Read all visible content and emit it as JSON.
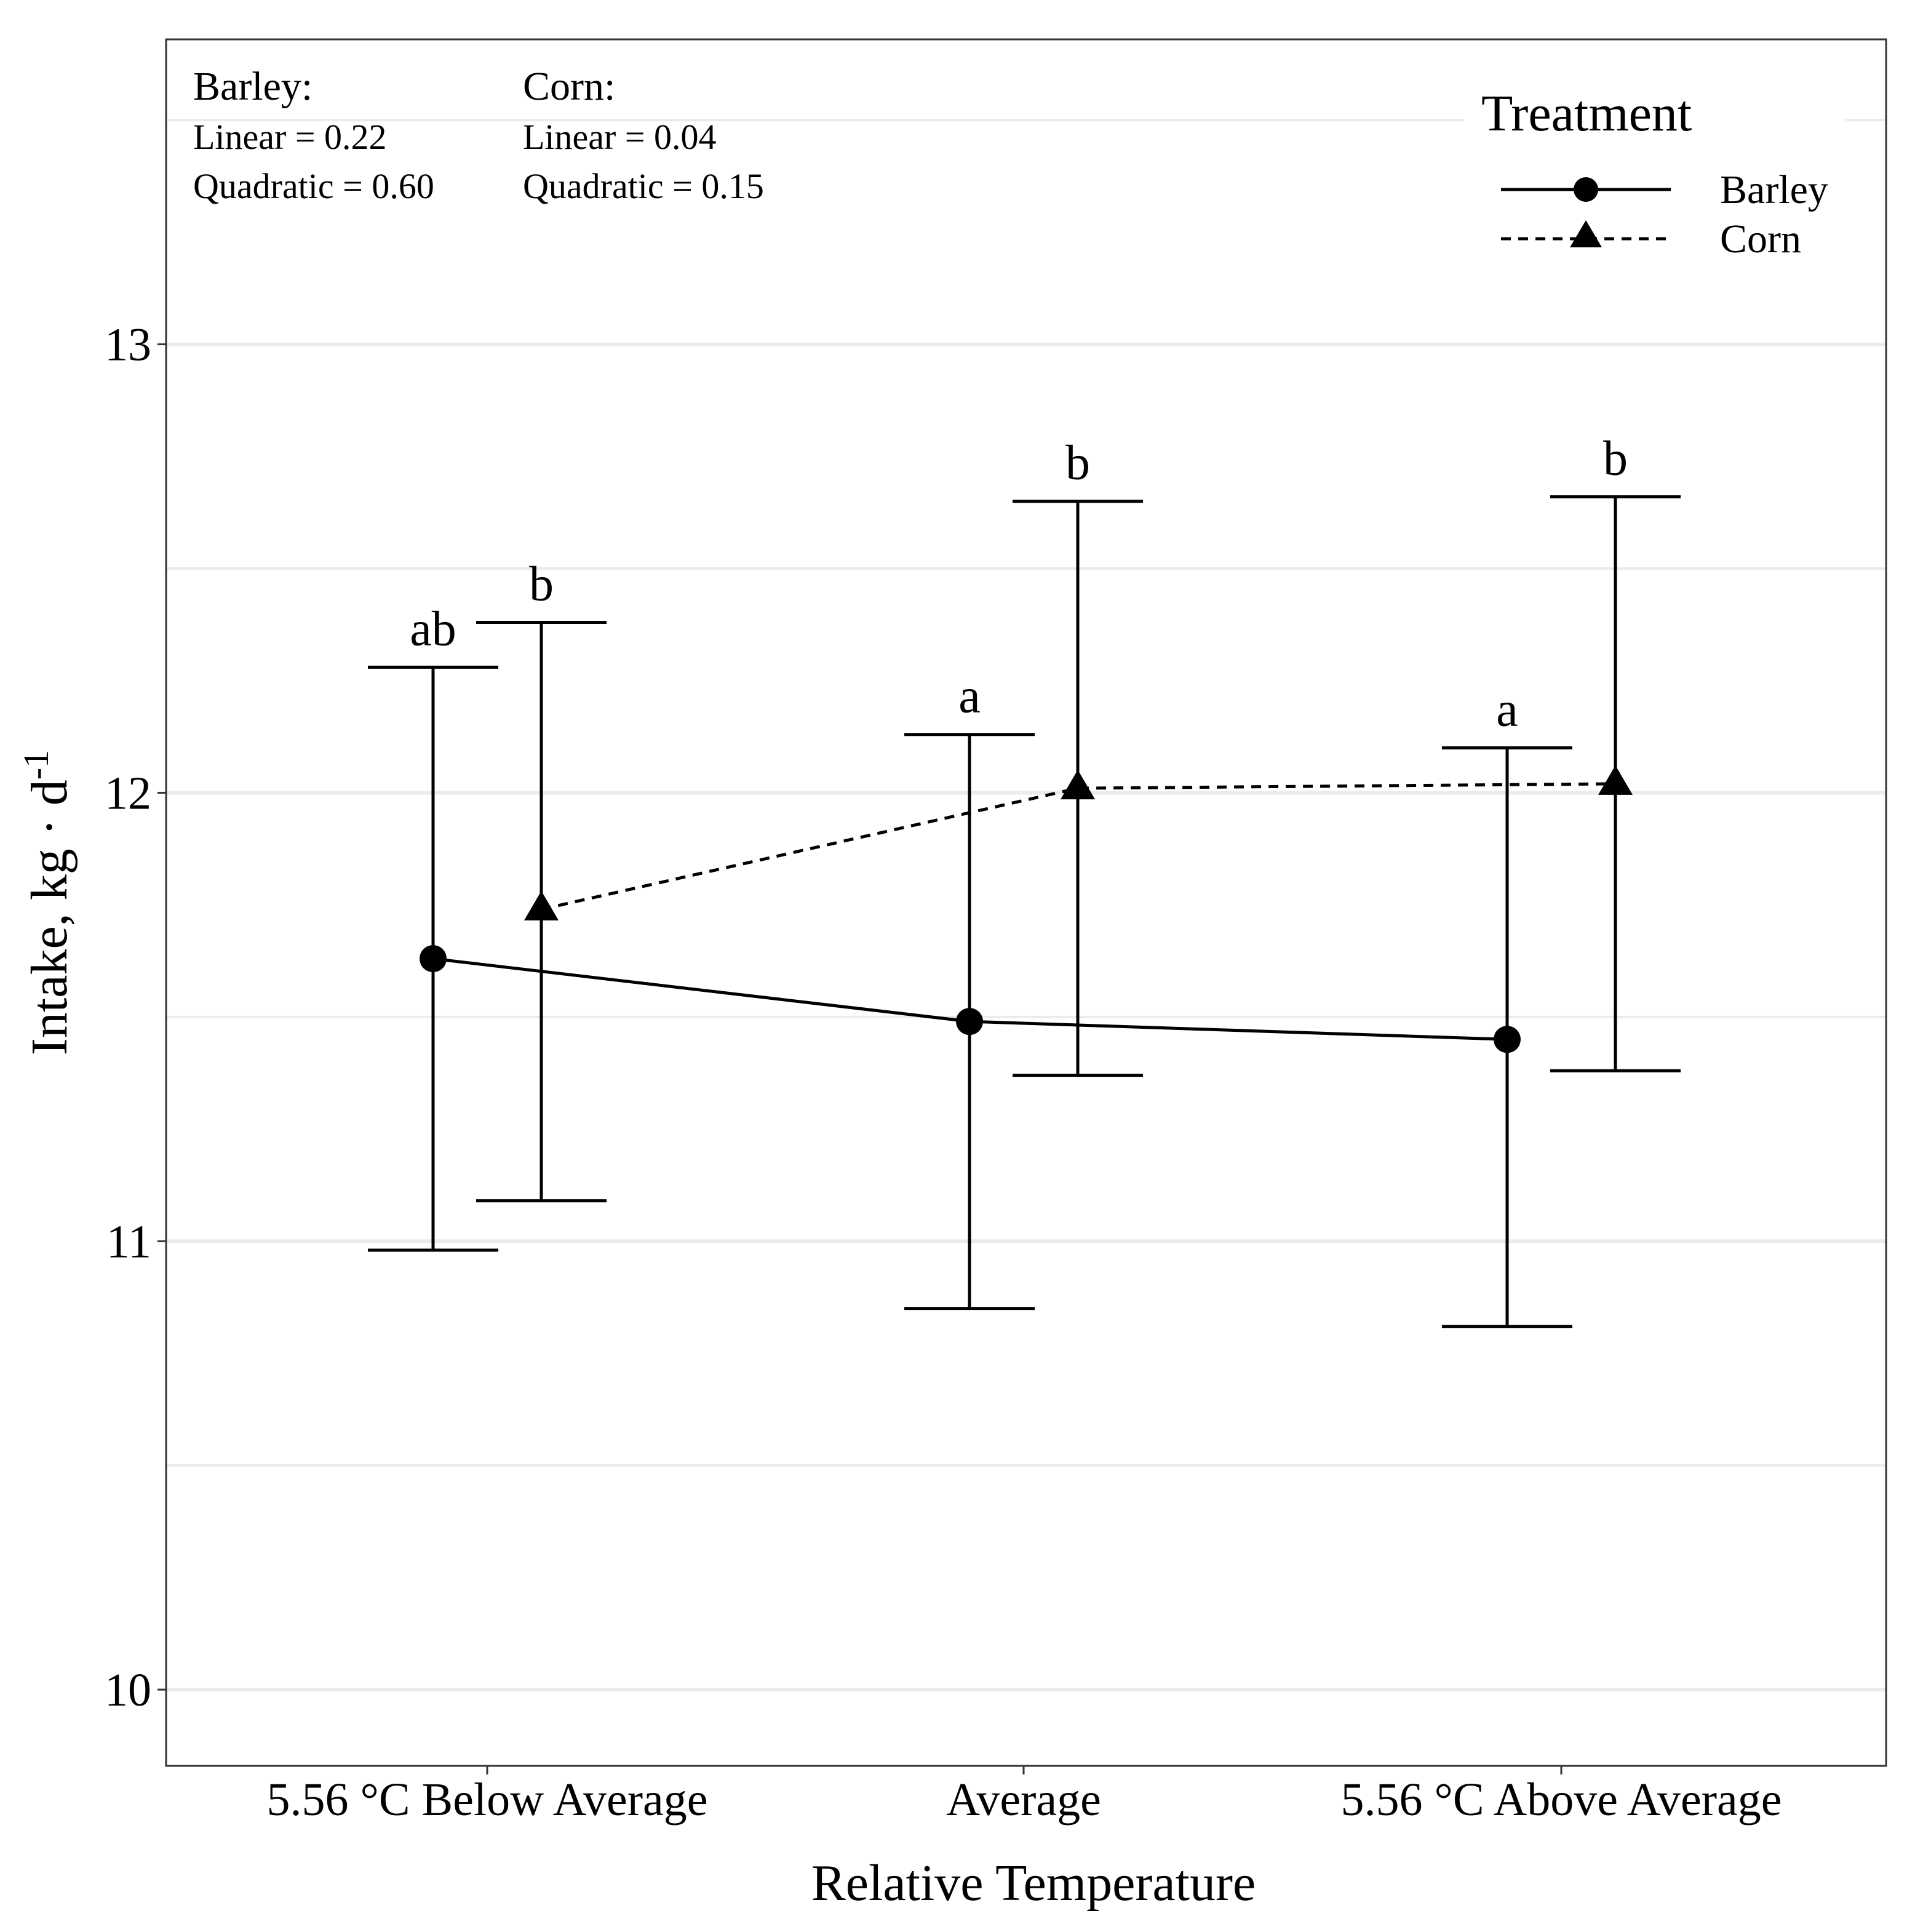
{
  "chart_data": {
    "type": "line",
    "title": "",
    "xlabel": "Relative Temperature",
    "ylabel_main": "Intake, kg · d",
    "ylabel_sup": "-1",
    "categories": [
      "5.56 °C Below Average",
      "Average",
      "5.56 °C Above Average"
    ],
    "ylim": [
      9.83,
      13.68
    ],
    "yticks": [
      10,
      11,
      12,
      13
    ],
    "ytick_labels": [
      "10",
      "11",
      "12",
      "13"
    ],
    "y_minor_gridlines": [
      10.5,
      11.5,
      12.5,
      13.5
    ],
    "grid": true,
    "legend": {
      "title": "Treatment",
      "position": "top-right",
      "entries": [
        {
          "label": "Barley",
          "marker": "circle",
          "line": "solid"
        },
        {
          "label": "Corn",
          "marker": "triangle",
          "line": "dashed"
        }
      ]
    },
    "series": [
      {
        "name": "Barley",
        "marker": "circle",
        "line": "solid",
        "values": [
          11.63,
          11.49,
          11.45
        ],
        "error_low": [
          10.98,
          10.85,
          10.81
        ],
        "error_high": [
          12.28,
          12.13,
          12.1
        ],
        "sig_letters": [
          "ab",
          "a",
          "a"
        ]
      },
      {
        "name": "Corn",
        "marker": "triangle",
        "line": "dashed",
        "values": [
          11.74,
          12.01,
          12.02
        ],
        "error_low": [
          11.09,
          11.37,
          11.38
        ],
        "error_high": [
          12.38,
          12.65,
          12.66
        ],
        "sig_letters": [
          "b",
          "b",
          "b"
        ]
      }
    ],
    "annotations": [
      {
        "title": "Barley:",
        "lines": [
          "Linear = 0.22",
          "Quadratic = 0.60"
        ]
      },
      {
        "title": "Corn:",
        "lines": [
          "Linear = 0.04",
          "Quadratic = 0.15"
        ]
      }
    ]
  }
}
